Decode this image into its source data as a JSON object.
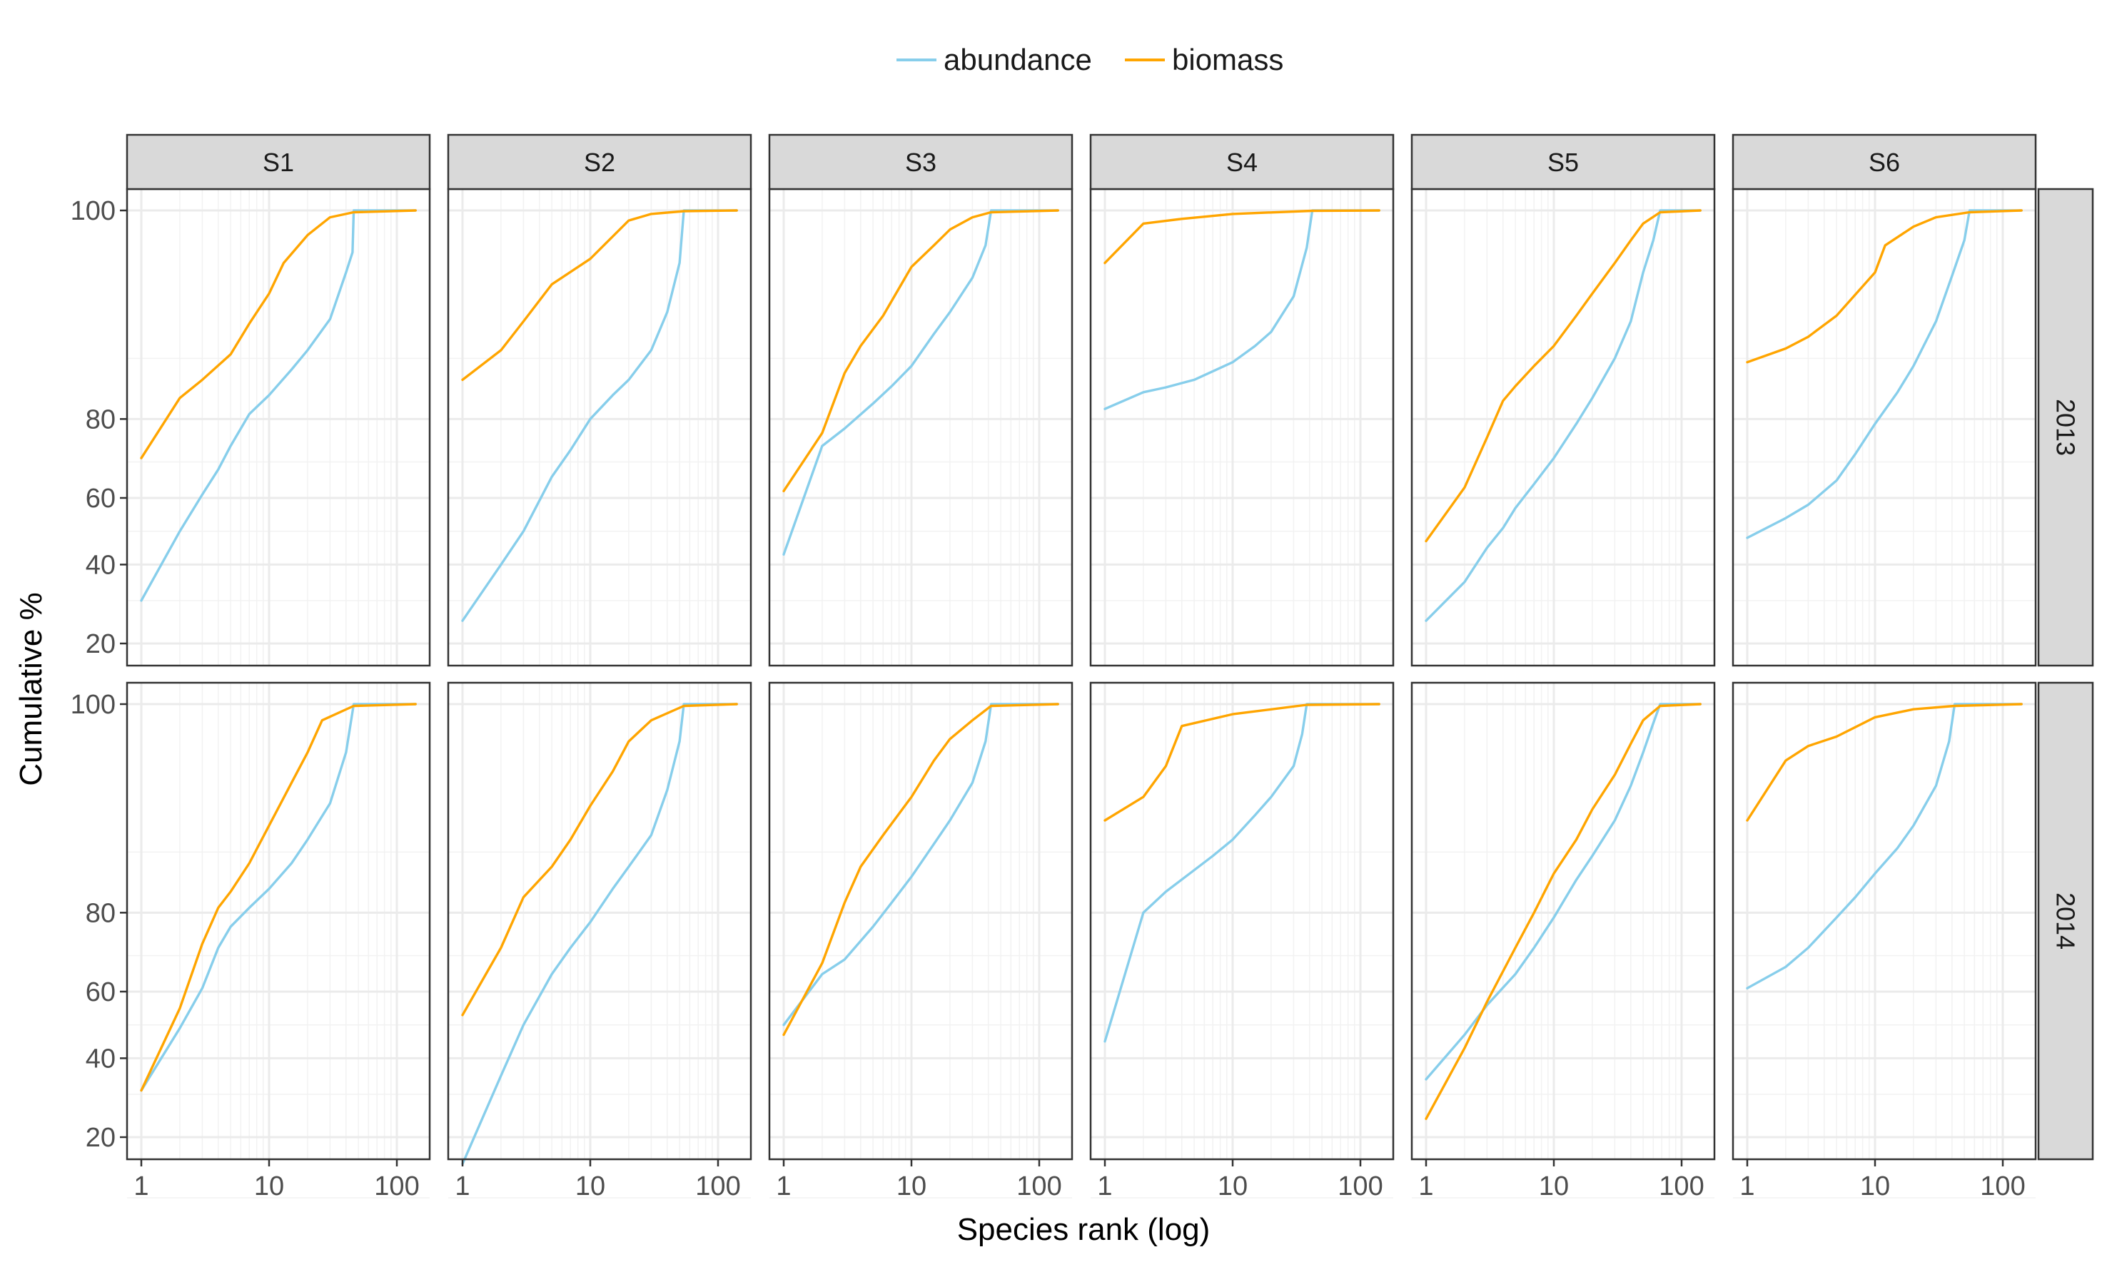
{
  "chart_data": {
    "type": "line",
    "layout": "facet-grid",
    "xlabel": "Species rank (log)",
    "ylabel": "Cumulative %",
    "x_scale": "log",
    "x_ticks": [
      1,
      10,
      100
    ],
    "x_tick_labels": [
      "1",
      "10",
      "100"
    ],
    "xlim": [
      0.8,
      160
    ],
    "y_transform": "logit",
    "y_ticks": [
      20,
      40,
      60,
      80,
      100
    ],
    "y_tick_labels": [
      "20",
      "40",
      "60",
      "80",
      "100"
    ],
    "grid": true,
    "legend_position": "top",
    "legend": [
      {
        "key": "abundance",
        "label": "abundance",
        "color": "#87CEEB"
      },
      {
        "key": "biomass",
        "label": "biomass",
        "color": "#FFA500"
      }
    ],
    "columns": [
      "S1",
      "S2",
      "S3",
      "S4",
      "S5",
      "S6"
    ],
    "rows": [
      "2013",
      "2014"
    ],
    "panels": [
      {
        "row": "2013",
        "col": "S1",
        "nmax": 140,
        "abundance": [
          [
            1,
            30
          ],
          [
            2,
            50
          ],
          [
            3,
            61
          ],
          [
            4,
            68
          ],
          [
            5,
            74
          ],
          [
            7,
            81
          ],
          [
            10,
            84.5
          ],
          [
            15,
            88.5
          ],
          [
            20,
            91
          ],
          [
            30,
            94.2
          ],
          [
            40,
            97.5
          ],
          [
            45,
            98.5
          ],
          [
            46,
            100
          ]
        ],
        "biomass": [
          [
            1,
            71
          ],
          [
            2,
            84
          ],
          [
            3,
            87
          ],
          [
            5,
            90.5
          ],
          [
            7,
            93.8
          ],
          [
            10,
            96.2
          ],
          [
            13,
            98
          ],
          [
            20,
            99.2
          ],
          [
            30,
            99.8
          ],
          [
            46,
            99.95
          ],
          [
            140,
            100
          ]
        ]
      },
      {
        "row": "2013",
        "col": "S2",
        "nmax": 140,
        "abundance": [
          [
            1,
            25
          ],
          [
            2,
            40
          ],
          [
            3,
            50
          ],
          [
            5,
            66
          ],
          [
            7,
            73
          ],
          [
            10,
            80
          ],
          [
            15,
            84.5
          ],
          [
            20,
            87
          ],
          [
            30,
            91
          ],
          [
            40,
            94.8
          ],
          [
            50,
            98
          ],
          [
            54,
            100
          ]
        ],
        "biomass": [
          [
            1,
            87
          ],
          [
            2,
            91
          ],
          [
            3,
            94
          ],
          [
            5,
            96.8
          ],
          [
            10,
            98.2
          ],
          [
            20,
            99.7
          ],
          [
            30,
            99.9
          ],
          [
            54,
            99.98
          ],
          [
            140,
            100
          ]
        ]
      },
      {
        "row": "2013",
        "col": "S3",
        "nmax": 140,
        "abundance": [
          [
            1,
            43
          ],
          [
            2,
            74
          ],
          [
            3,
            78
          ],
          [
            5,
            83
          ],
          [
            7,
            86
          ],
          [
            10,
            89
          ],
          [
            15,
            92.8
          ],
          [
            20,
            94.8
          ],
          [
            30,
            97.2
          ],
          [
            38,
            98.8
          ],
          [
            42,
            100
          ]
        ],
        "biomass": [
          [
            1,
            62
          ],
          [
            2,
            77
          ],
          [
            3,
            88
          ],
          [
            4,
            91.5
          ],
          [
            6,
            94.5
          ],
          [
            10,
            97.8
          ],
          [
            15,
            98.8
          ],
          [
            20,
            99.4
          ],
          [
            30,
            99.8
          ],
          [
            42,
            99.95
          ],
          [
            140,
            100
          ]
        ]
      },
      {
        "row": "2013",
        "col": "S4",
        "nmax": 140,
        "abundance": [
          [
            1,
            82
          ],
          [
            2,
            85
          ],
          [
            3,
            85.8
          ],
          [
            5,
            87
          ],
          [
            10,
            89.5
          ],
          [
            15,
            91.5
          ],
          [
            20,
            93
          ],
          [
            30,
            96
          ],
          [
            38,
            98.7
          ],
          [
            42,
            100
          ]
        ],
        "biomass": [
          [
            1,
            98
          ],
          [
            2,
            99.6
          ],
          [
            4,
            99.75
          ],
          [
            10,
            99.9
          ],
          [
            42,
            99.99
          ],
          [
            140,
            100
          ]
        ]
      },
      {
        "row": "2013",
        "col": "S5",
        "nmax": 140,
        "abundance": [
          [
            1,
            25
          ],
          [
            2,
            35
          ],
          [
            3,
            45
          ],
          [
            4,
            51
          ],
          [
            5,
            57
          ],
          [
            7,
            64
          ],
          [
            10,
            71
          ],
          [
            15,
            79
          ],
          [
            20,
            84
          ],
          [
            30,
            90
          ],
          [
            40,
            94
          ],
          [
            50,
            97.5
          ],
          [
            60,
            99
          ],
          [
            68,
            100
          ]
        ],
        "biomass": [
          [
            1,
            47
          ],
          [
            2,
            63
          ],
          [
            3,
            76
          ],
          [
            4,
            83.5
          ],
          [
            5,
            86
          ],
          [
            7,
            89
          ],
          [
            10,
            91.5
          ],
          [
            15,
            94.5
          ],
          [
            20,
            96.2
          ],
          [
            30,
            98
          ],
          [
            40,
            99
          ],
          [
            50,
            99.6
          ],
          [
            68,
            99.95
          ],
          [
            140,
            100
          ]
        ]
      },
      {
        "row": "2013",
        "col": "S6",
        "nmax": 140,
        "abundance": [
          [
            1,
            48
          ],
          [
            2,
            54
          ],
          [
            3,
            58
          ],
          [
            5,
            65
          ],
          [
            7,
            72
          ],
          [
            10,
            79
          ],
          [
            15,
            85
          ],
          [
            20,
            89
          ],
          [
            30,
            94
          ],
          [
            40,
            97.3
          ],
          [
            50,
            99
          ],
          [
            55,
            100
          ]
        ],
        "biomass": [
          [
            1,
            89.5
          ],
          [
            2,
            91.2
          ],
          [
            3,
            92.5
          ],
          [
            5,
            94.5
          ],
          [
            10,
            97.5
          ],
          [
            12,
            98.8
          ],
          [
            20,
            99.5
          ],
          [
            30,
            99.8
          ],
          [
            55,
            99.95
          ],
          [
            140,
            100
          ]
        ]
      },
      {
        "row": "2014",
        "col": "S1",
        "nmax": 140,
        "abundance": [
          [
            1,
            31
          ],
          [
            2,
            49
          ],
          [
            3,
            61
          ],
          [
            4,
            72
          ],
          [
            5,
            77
          ],
          [
            7,
            81
          ],
          [
            10,
            84.5
          ],
          [
            15,
            88.5
          ],
          [
            20,
            91.5
          ],
          [
            30,
            95
          ],
          [
            40,
            98.2
          ],
          [
            46,
            100
          ]
        ],
        "biomass": [
          [
            1,
            31
          ],
          [
            2,
            55
          ],
          [
            3,
            73
          ],
          [
            4,
            81
          ],
          [
            5,
            84
          ],
          [
            7,
            88.5
          ],
          [
            10,
            93
          ],
          [
            15,
            96.5
          ],
          [
            20,
            98.2
          ],
          [
            26,
            99.5
          ],
          [
            46,
            99.95
          ],
          [
            140,
            100
          ]
        ]
      },
      {
        "row": "2014",
        "col": "S2",
        "nmax": 140,
        "abundance": [
          [
            1,
            15
          ],
          [
            2,
            35
          ],
          [
            3,
            50
          ],
          [
            5,
            65
          ],
          [
            7,
            72
          ],
          [
            10,
            78
          ],
          [
            15,
            84.5
          ],
          [
            20,
            88
          ],
          [
            30,
            92
          ],
          [
            40,
            96
          ],
          [
            50,
            98.7
          ],
          [
            54,
            100
          ]
        ],
        "biomass": [
          [
            1,
            53
          ],
          [
            2,
            72
          ],
          [
            3,
            83
          ],
          [
            5,
            88
          ],
          [
            7,
            91.5
          ],
          [
            10,
            94.8
          ],
          [
            15,
            97.2
          ],
          [
            20,
            98.7
          ],
          [
            30,
            99.5
          ],
          [
            54,
            99.95
          ],
          [
            140,
            100
          ]
        ]
      },
      {
        "row": "2014",
        "col": "S3",
        "nmax": 140,
        "abundance": [
          [
            1,
            50
          ],
          [
            2,
            65
          ],
          [
            3,
            69
          ],
          [
            5,
            77
          ],
          [
            7,
            82
          ],
          [
            10,
            86.5
          ],
          [
            15,
            91
          ],
          [
            20,
            93.5
          ],
          [
            30,
            96.5
          ],
          [
            38,
            98.7
          ],
          [
            42,
            100
          ]
        ],
        "biomass": [
          [
            1,
            47
          ],
          [
            2,
            68
          ],
          [
            3,
            82
          ],
          [
            4,
            88
          ],
          [
            6,
            92
          ],
          [
            10,
            95.5
          ],
          [
            15,
            97.8
          ],
          [
            20,
            98.8
          ],
          [
            30,
            99.5
          ],
          [
            42,
            99.95
          ],
          [
            140,
            100
          ]
        ]
      },
      {
        "row": "2014",
        "col": "S4",
        "nmax": 140,
        "abundance": [
          [
            1,
            45
          ],
          [
            2,
            80
          ],
          [
            3,
            84
          ],
          [
            5,
            87.5
          ],
          [
            7,
            89.5
          ],
          [
            10,
            91.5
          ],
          [
            15,
            94
          ],
          [
            20,
            95.5
          ],
          [
            30,
            97.5
          ],
          [
            35,
            99
          ],
          [
            38,
            100
          ]
        ],
        "biomass": [
          [
            1,
            93.5
          ],
          [
            2,
            95.5
          ],
          [
            3,
            97.5
          ],
          [
            4,
            99.3
          ],
          [
            10,
            99.7
          ],
          [
            38,
            99.98
          ],
          [
            140,
            100
          ]
        ]
      },
      {
        "row": "2014",
        "col": "S5",
        "nmax": 140,
        "abundance": [
          [
            1,
            34
          ],
          [
            2,
            47
          ],
          [
            3,
            56
          ],
          [
            5,
            65
          ],
          [
            7,
            72
          ],
          [
            10,
            79
          ],
          [
            15,
            86
          ],
          [
            20,
            89.5
          ],
          [
            30,
            93.5
          ],
          [
            40,
            96.3
          ],
          [
            50,
            98.2
          ],
          [
            60,
            99.4
          ],
          [
            68,
            100
          ]
        ],
        "biomass": [
          [
            1,
            24
          ],
          [
            2,
            43
          ],
          [
            3,
            57
          ],
          [
            5,
            72
          ],
          [
            7,
            80
          ],
          [
            10,
            87
          ],
          [
            15,
            91.5
          ],
          [
            20,
            94.5
          ],
          [
            30,
            97
          ],
          [
            40,
            98.6
          ],
          [
            50,
            99.5
          ],
          [
            68,
            99.95
          ],
          [
            140,
            100
          ]
        ]
      },
      {
        "row": "2014",
        "col": "S6",
        "nmax": 140,
        "abundance": [
          [
            1,
            61
          ],
          [
            2,
            67
          ],
          [
            3,
            72
          ],
          [
            5,
            79
          ],
          [
            7,
            83
          ],
          [
            10,
            87
          ],
          [
            15,
            90.5
          ],
          [
            20,
            93
          ],
          [
            30,
            96.3
          ],
          [
            38,
            98.7
          ],
          [
            42,
            100
          ]
        ],
        "biomass": [
          [
            1,
            93.5
          ],
          [
            2,
            97.8
          ],
          [
            3,
            98.5
          ],
          [
            5,
            98.9
          ],
          [
            10,
            99.6
          ],
          [
            20,
            99.85
          ],
          [
            42,
            99.95
          ],
          [
            140,
            100
          ]
        ]
      }
    ]
  }
}
